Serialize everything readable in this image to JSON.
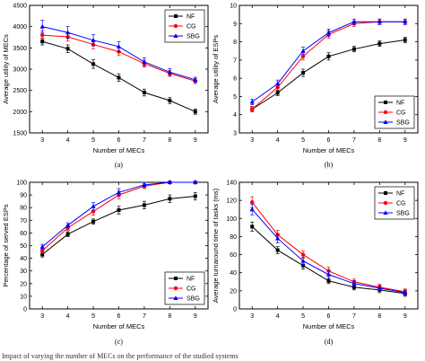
{
  "caption": "Impact of varying the number of MECs on the performance of the studied systems",
  "chart_data": [
    {
      "type": "line",
      "sublabel": "(a)",
      "xlabel": "Number of MECs",
      "ylabel": "Average utility of MECs",
      "x": [
        3,
        4,
        5,
        6,
        7,
        8,
        9
      ],
      "xlim": [
        2.5,
        9.5
      ],
      "ylim": [
        1500,
        4500
      ],
      "yticks": [
        1500,
        2000,
        2500,
        3000,
        3500,
        4000,
        4500
      ],
      "legend": "top-right",
      "series": [
        {
          "name": "NF",
          "color": "#000000",
          "marker": "square",
          "values": [
            3650,
            3480,
            3120,
            2800,
            2450,
            2260,
            2000
          ],
          "err": [
            80,
            90,
            100,
            90,
            80,
            70,
            60
          ]
        },
        {
          "name": "CG",
          "color": "#ff0000",
          "marker": "circle",
          "values": [
            3800,
            3760,
            3580,
            3410,
            3130,
            2900,
            2720
          ],
          "err": [
            100,
            100,
            100,
            90,
            80,
            70,
            60
          ]
        },
        {
          "name": "SBG",
          "color": "#0000ff",
          "marker": "triangle",
          "values": [
            4000,
            3860,
            3680,
            3530,
            3170,
            2930,
            2750
          ],
          "err": [
            150,
            140,
            130,
            120,
            100,
            80,
            60
          ]
        }
      ]
    },
    {
      "type": "line",
      "sublabel": "(b)",
      "xlabel": "Number of MECs",
      "ylabel": "Average utility of ESPs",
      "x": [
        3,
        4,
        5,
        6,
        7,
        8,
        9
      ],
      "xlim": [
        2.5,
        9.5
      ],
      "ylim": [
        3,
        10
      ],
      "yticks": [
        3,
        4,
        5,
        6,
        7,
        8,
        9,
        10
      ],
      "legend": "bottom-right",
      "series": [
        {
          "name": "NF",
          "color": "#000000",
          "marker": "square",
          "values": [
            4.3,
            5.2,
            6.3,
            7.2,
            7.6,
            7.9,
            8.1
          ],
          "err": [
            0.15,
            0.15,
            0.2,
            0.2,
            0.15,
            0.15,
            0.15
          ]
        },
        {
          "name": "CG",
          "color": "#ff0000",
          "marker": "circle",
          "values": [
            4.3,
            5.5,
            7.2,
            8.4,
            9.0,
            9.1,
            9.1
          ],
          "err": [
            0.15,
            0.2,
            0.2,
            0.2,
            0.15,
            0.15,
            0.15
          ]
        },
        {
          "name": "SBG",
          "color": "#0000ff",
          "marker": "triangle",
          "values": [
            4.7,
            5.7,
            7.5,
            8.5,
            9.1,
            9.1,
            9.1
          ],
          "err": [
            0.15,
            0.2,
            0.2,
            0.2,
            0.15,
            0.15,
            0.15
          ]
        }
      ]
    },
    {
      "type": "line",
      "sublabel": "(c)",
      "xlabel": "Number of MECs",
      "ylabel": "Percentage of served ESPs",
      "x": [
        3,
        4,
        5,
        6,
        7,
        8,
        9
      ],
      "xlim": [
        2.5,
        9.5
      ],
      "ylim": [
        0,
        100
      ],
      "yticks": [
        0,
        10,
        20,
        30,
        40,
        50,
        60,
        70,
        80,
        90,
        100
      ],
      "legend": "bottom-right",
      "series": [
        {
          "name": "NF",
          "color": "#000000",
          "marker": "square",
          "values": [
            43,
            59,
            69,
            78,
            82,
            87,
            89
          ],
          "err": [
            2,
            2,
            2,
            3,
            3,
            3,
            3
          ]
        },
        {
          "name": "CG",
          "color": "#ff0000",
          "marker": "circle",
          "values": [
            46,
            64,
            77,
            90,
            97,
            100,
            100
          ],
          "err": [
            2,
            2,
            3,
            3,
            2,
            1,
            1
          ]
        },
        {
          "name": "SBG",
          "color": "#0000ff",
          "marker": "triangle",
          "values": [
            49,
            66,
            81,
            92,
            98,
            100,
            100
          ],
          "err": [
            2,
            2,
            3,
            3,
            2,
            1,
            1
          ]
        }
      ]
    },
    {
      "type": "line",
      "sublabel": "(d)",
      "xlabel": "Number of MECs",
      "ylabel": "Average turnaround time of tasks (ms)",
      "x": [
        3,
        4,
        5,
        6,
        7,
        8,
        9
      ],
      "xlim": [
        2.5,
        9.5
      ],
      "ylim": [
        0,
        140
      ],
      "yticks": [
        0,
        20,
        40,
        60,
        80,
        100,
        120,
        140
      ],
      "legend": "top-right",
      "series": [
        {
          "name": "NF",
          "color": "#000000",
          "marker": "square",
          "values": [
            91,
            65,
            48,
            31,
            24,
            21,
            17
          ],
          "err": [
            5,
            4,
            4,
            3,
            3,
            3,
            3
          ]
        },
        {
          "name": "CG",
          "color": "#ff0000",
          "marker": "circle",
          "values": [
            118,
            82,
            60,
            42,
            30,
            24,
            19
          ],
          "err": [
            6,
            5,
            4,
            4,
            3,
            3,
            3
          ]
        },
        {
          "name": "SBG",
          "color": "#0000ff",
          "marker": "triangle",
          "values": [
            110,
            78,
            53,
            38,
            28,
            23,
            18
          ],
          "err": [
            6,
            5,
            4,
            4,
            3,
            3,
            3
          ]
        }
      ]
    }
  ]
}
